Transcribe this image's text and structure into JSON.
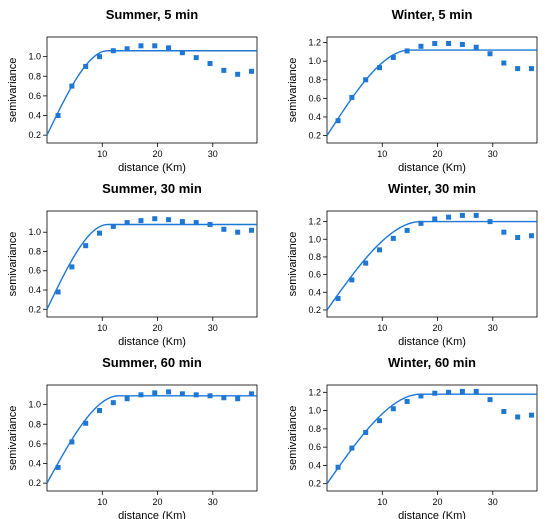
{
  "figure": {
    "colors": {
      "series": "#1f77d4",
      "axis": "#000000"
    }
  },
  "chart_data": [
    {
      "type": "scatter",
      "title": "Summer, 5 min",
      "xlabel": "distance (Km)",
      "ylabel": "semivariance",
      "xlim": [
        0,
        38
      ],
      "ylim": [
        0.12,
        1.2
      ],
      "xticks": [
        10,
        20,
        30
      ],
      "yticks": [
        0.2,
        0.4,
        0.6,
        0.8,
        1.0
      ],
      "xtick_labels": [
        "10",
        "20",
        "30"
      ],
      "ytick_labels": [
        "0.2",
        "0.4",
        "0.6",
        "0.8",
        "1.0"
      ],
      "grid": false,
      "points": {
        "x": [
          2,
          4.5,
          7,
          9.5,
          12,
          14.5,
          17,
          19.5,
          22,
          24.5,
          27,
          29.5,
          32,
          34.5,
          37
        ],
        "y": [
          0.4,
          0.7,
          0.9,
          1.0,
          1.06,
          1.08,
          1.11,
          1.11,
          1.09,
          1.04,
          0.99,
          0.93,
          0.86,
          0.82,
          0.85
        ]
      },
      "model": {
        "nugget": 0.2,
        "sill": 1.06,
        "range": 11
      }
    },
    {
      "type": "scatter",
      "title": "Winter, 5 min",
      "xlabel": "distance (Km)",
      "ylabel": "semivariance",
      "xlim": [
        0,
        38
      ],
      "ylim": [
        0.12,
        1.26
      ],
      "xticks": [
        10,
        20,
        30
      ],
      "yticks": [
        0.2,
        0.4,
        0.6,
        0.8,
        1.0,
        1.2
      ],
      "xtick_labels": [
        "10",
        "20",
        "30"
      ],
      "ytick_labels": [
        "0.2",
        "0.4",
        "0.6",
        "0.8",
        "1.0",
        "1.2"
      ],
      "grid": false,
      "points": {
        "x": [
          2,
          4.5,
          7,
          9.5,
          12,
          14.5,
          17,
          19.5,
          22,
          24.5,
          27,
          29.5,
          32,
          34.5,
          37
        ],
        "y": [
          0.36,
          0.61,
          0.8,
          0.93,
          1.04,
          1.11,
          1.16,
          1.19,
          1.19,
          1.18,
          1.15,
          1.08,
          0.98,
          0.92,
          0.92
        ]
      },
      "model": {
        "nugget": 0.2,
        "sill": 1.12,
        "range": 15
      }
    },
    {
      "type": "scatter",
      "title": "Summer, 30 min",
      "xlabel": "distance (Km)",
      "ylabel": "semivariance",
      "xlim": [
        0,
        38
      ],
      "ylim": [
        0.12,
        1.22
      ],
      "xticks": [
        10,
        20,
        30
      ],
      "yticks": [
        0.2,
        0.4,
        0.6,
        0.8,
        1.0
      ],
      "xtick_labels": [
        "10",
        "20",
        "30"
      ],
      "ytick_labels": [
        "0.2",
        "0.4",
        "0.6",
        "0.8",
        "1.0"
      ],
      "grid": false,
      "points": {
        "x": [
          2,
          4.5,
          7,
          9.5,
          12,
          14.5,
          17,
          19.5,
          22,
          24.5,
          27,
          29.5,
          32,
          34.5,
          37
        ],
        "y": [
          0.38,
          0.64,
          0.86,
          0.99,
          1.06,
          1.1,
          1.12,
          1.14,
          1.13,
          1.11,
          1.1,
          1.08,
          1.03,
          1.0,
          1.02
        ]
      },
      "model": {
        "nugget": 0.2,
        "sill": 1.08,
        "range": 11
      }
    },
    {
      "type": "scatter",
      "title": "Winter, 30 min",
      "xlabel": "distance (Km)",
      "ylabel": "semivariance",
      "xlim": [
        0,
        38
      ],
      "ylim": [
        0.12,
        1.32
      ],
      "xticks": [
        10,
        20,
        30
      ],
      "yticks": [
        0.2,
        0.4,
        0.6,
        0.8,
        1.0,
        1.2
      ],
      "xtick_labels": [
        "10",
        "20",
        "30"
      ],
      "ytick_labels": [
        "0.2",
        "0.4",
        "0.6",
        "0.8",
        "1.0",
        "1.2"
      ],
      "grid": false,
      "points": {
        "x": [
          2,
          4.5,
          7,
          9.5,
          12,
          14.5,
          17,
          19.5,
          22,
          24.5,
          27,
          29.5,
          32,
          34.5,
          37
        ],
        "y": [
          0.33,
          0.54,
          0.73,
          0.88,
          1.01,
          1.1,
          1.18,
          1.23,
          1.25,
          1.27,
          1.27,
          1.2,
          1.08,
          1.02,
          1.04
        ]
      },
      "model": {
        "nugget": 0.2,
        "sill": 1.2,
        "range": 17
      }
    },
    {
      "type": "scatter",
      "title": "Summer, 60 min",
      "xlabel": "distance (Km)",
      "ylabel": "semivariance",
      "xlim": [
        0,
        38
      ],
      "ylim": [
        0.12,
        1.2
      ],
      "xticks": [
        10,
        20,
        30
      ],
      "yticks": [
        0.2,
        0.4,
        0.6,
        0.8,
        1.0
      ],
      "xtick_labels": [
        "10",
        "20",
        "30"
      ],
      "ytick_labels": [
        "0.2",
        "0.4",
        "0.6",
        "0.8",
        "1.0"
      ],
      "grid": false,
      "points": {
        "x": [
          2,
          4.5,
          7,
          9.5,
          12,
          14.5,
          17,
          19.5,
          22,
          24.5,
          27,
          29.5,
          32,
          34.5,
          37
        ],
        "y": [
          0.36,
          0.62,
          0.81,
          0.94,
          1.02,
          1.06,
          1.1,
          1.12,
          1.13,
          1.11,
          1.1,
          1.09,
          1.07,
          1.06,
          1.11
        ]
      },
      "model": {
        "nugget": 0.2,
        "sill": 1.09,
        "range": 13
      }
    },
    {
      "type": "scatter",
      "title": "Winter, 60 min",
      "xlabel": "distance (Km)",
      "ylabel": "semivariance",
      "xlim": [
        0,
        38
      ],
      "ylim": [
        0.12,
        1.28
      ],
      "xticks": [
        10,
        20,
        30
      ],
      "yticks": [
        0.2,
        0.4,
        0.6,
        0.8,
        1.0,
        1.2
      ],
      "xtick_labels": [
        "10",
        "20",
        "30"
      ],
      "ytick_labels": [
        "0.2",
        "0.4",
        "0.6",
        "0.8",
        "1.0",
        "1.2"
      ],
      "grid": false,
      "points": {
        "x": [
          2,
          4.5,
          7,
          9.5,
          12,
          14.5,
          17,
          19.5,
          22,
          24.5,
          27,
          29.5,
          32,
          34.5,
          37
        ],
        "y": [
          0.38,
          0.59,
          0.76,
          0.89,
          1.02,
          1.1,
          1.16,
          1.19,
          1.2,
          1.21,
          1.21,
          1.12,
          0.99,
          0.93,
          0.95
        ]
      },
      "model": {
        "nugget": 0.2,
        "sill": 1.18,
        "range": 17
      }
    }
  ]
}
